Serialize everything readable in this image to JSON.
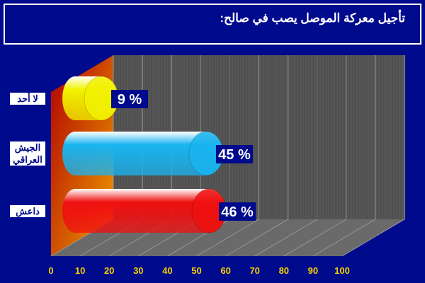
{
  "chart_data": {
    "type": "bar",
    "orientation": "horizontal",
    "title": "تأجيل معركة الموصل يصب في صالح:",
    "categories": [
      "لا أحد",
      "الجيش العراقي",
      "داعش"
    ],
    "values": [
      9,
      45,
      46
    ],
    "value_labels": [
      "9 %",
      "45 %",
      "46 %"
    ],
    "colors": [
      "#f2f200",
      "#19b4f0",
      "#f01010"
    ],
    "xlim": [
      0,
      100
    ],
    "xticks": [
      0,
      10,
      20,
      30,
      40,
      50,
      60,
      70,
      80,
      90,
      100
    ]
  }
}
